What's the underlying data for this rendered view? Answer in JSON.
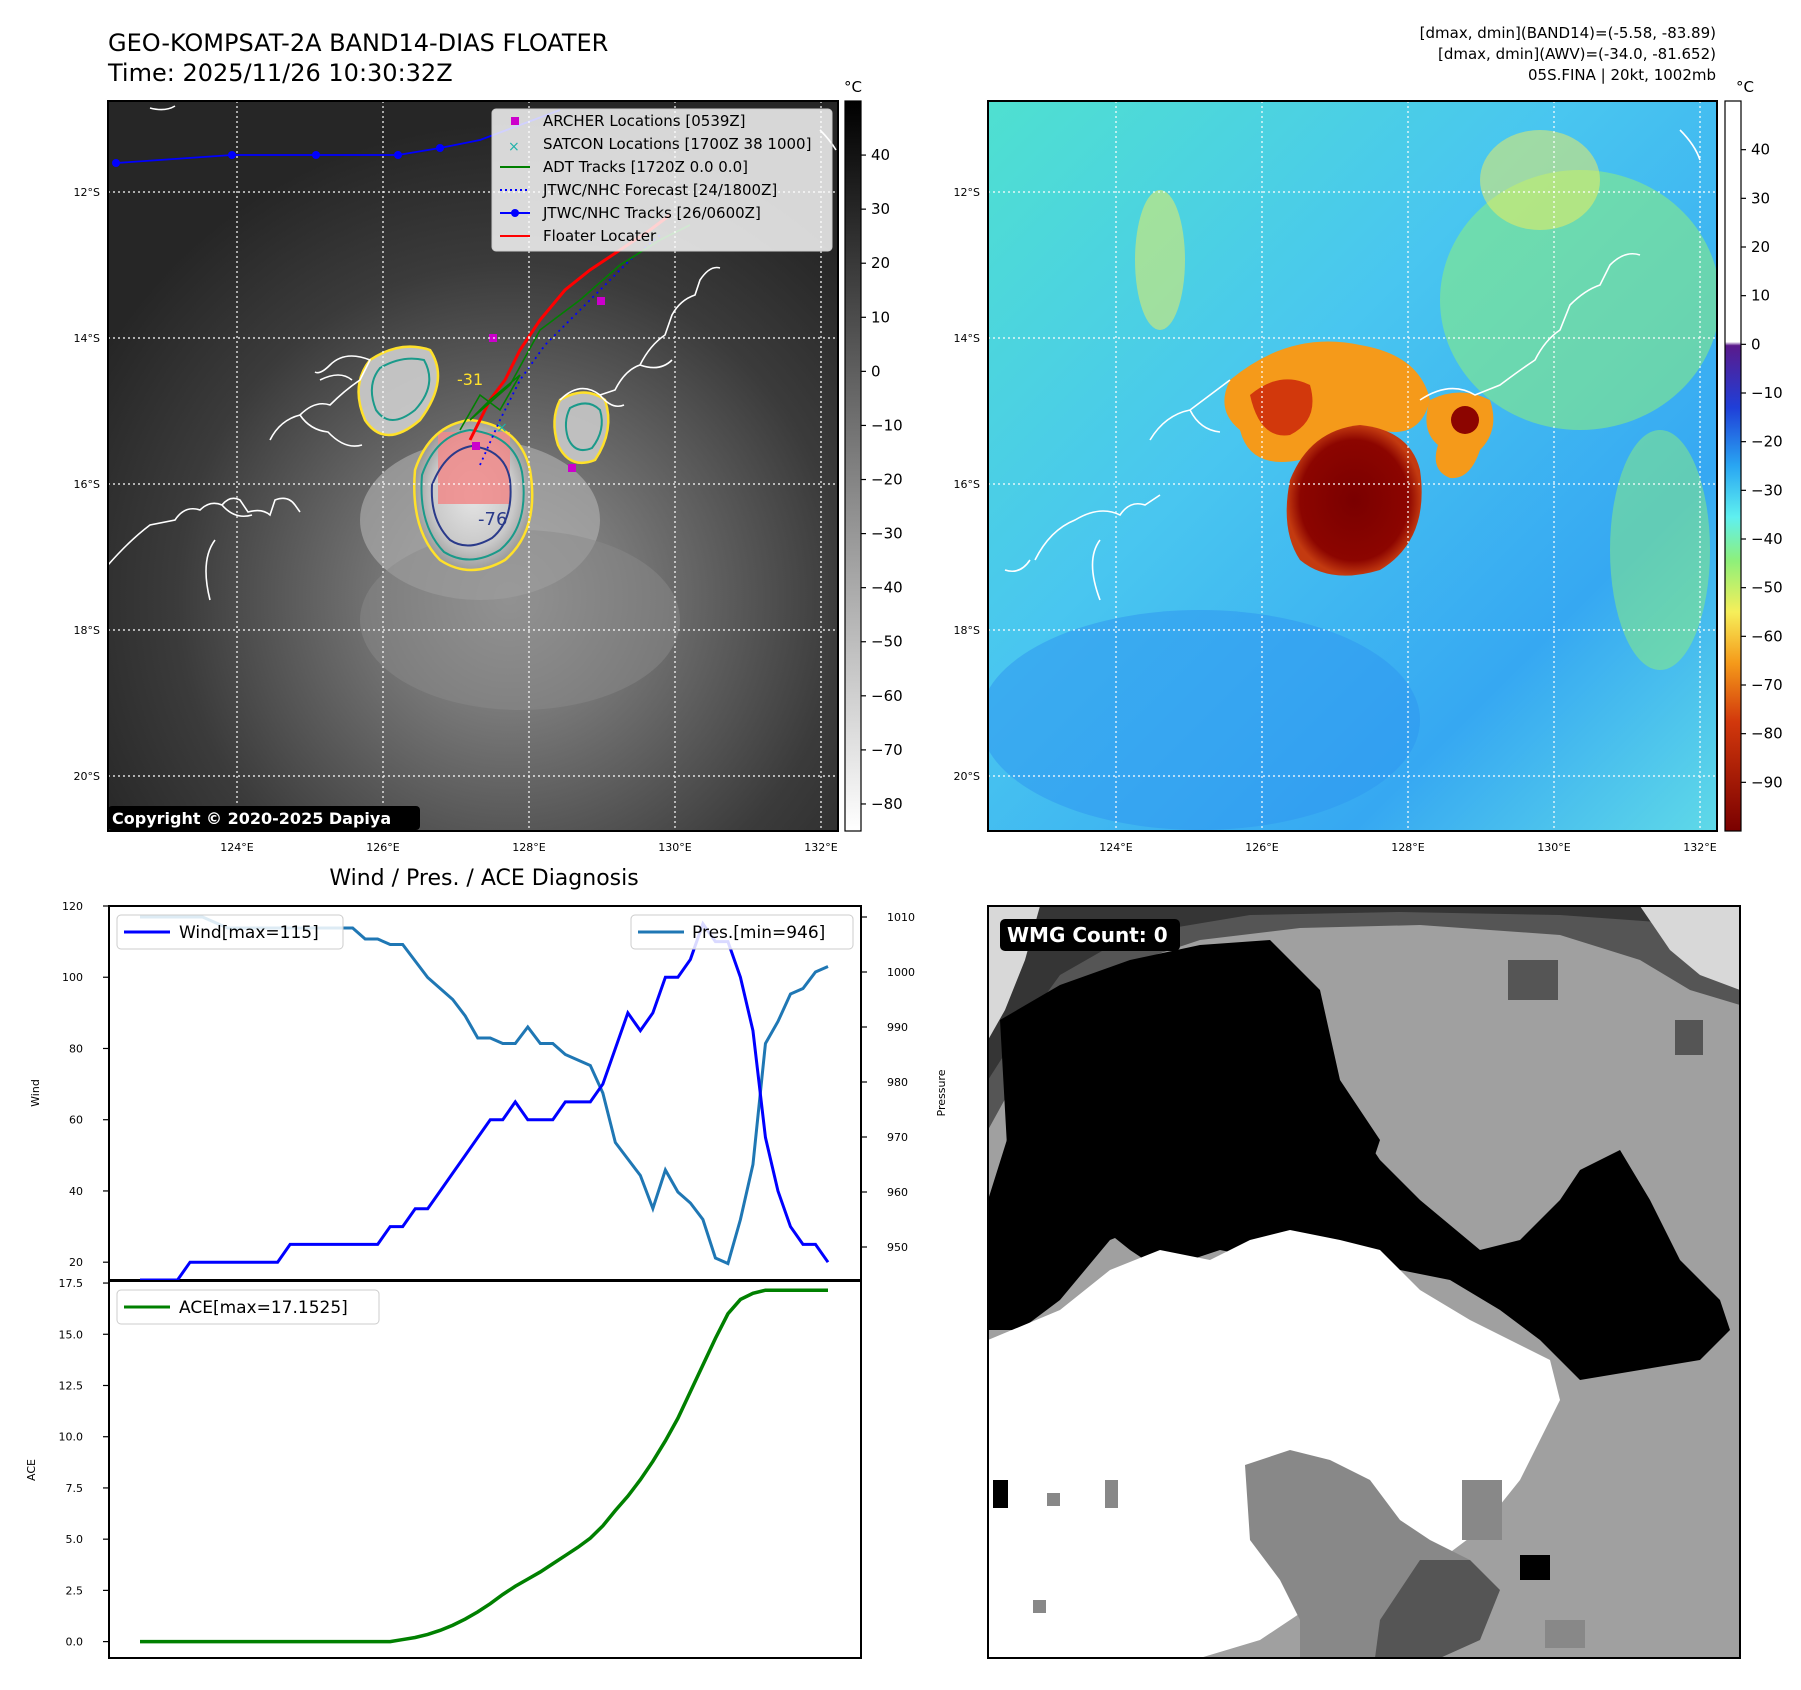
{
  "header": {
    "title": "GEO-KOMPSAT-2A BAND14-DIAS FLOATER",
    "time": "Time: 2025/11/26 10:30:32Z",
    "stats_band14": "[dmax, dmin](BAND14)=(-5.58, -83.89)",
    "stats_awv": "[dmax, dmin](AWV)=(-34.0, -81.652)",
    "storm": "05S.FINA | 20kt, 1002mb",
    "copyright": "Copyright © 2020-2025 Dapiya"
  },
  "map": {
    "lat_labels": [
      "12°S",
      "14°S",
      "16°S",
      "18°S",
      "20°S"
    ],
    "lon_labels": [
      "124°E",
      "126°E",
      "128°E",
      "130°E",
      "132°E"
    ],
    "contour_labels": [
      "-31",
      "-76"
    ],
    "colors": {
      "land": "#ffffff",
      "grid": "#ffffff",
      "archer": "#cc00cc",
      "satcon": "#20b2aa",
      "adt": "#008000",
      "jtwc": "#0000ff",
      "floater": "#ff0000"
    },
    "legend": [
      {
        "label": "ARCHER Locations [0539Z]",
        "color": "#cc00cc",
        "style": "square"
      },
      {
        "label": "SATCON Locations [1700Z 38 1000]",
        "color": "#20b2aa",
        "style": "x"
      },
      {
        "label": "ADT Tracks [1720Z 0.0 0.0]",
        "color": "#008000",
        "style": "line"
      },
      {
        "label": "JTWC/NHC Forecast [24/1800Z]",
        "color": "#0000ff",
        "style": "dotted"
      },
      {
        "label": "JTWC/NHC Tracks [26/0600Z]",
        "color": "#0000ff",
        "style": "dotline"
      },
      {
        "label": "Floater Locater",
        "color": "#ff0000",
        "style": "line"
      }
    ]
  },
  "colorbar_ir": {
    "unit": "°C",
    "ticks": [
      "40",
      "30",
      "20",
      "10",
      "0",
      "−10",
      "−20",
      "−30",
      "−40",
      "−50",
      "−60",
      "−70",
      "−80"
    ],
    "range": [
      -85,
      50
    ]
  },
  "colorbar_awv": {
    "unit": "°C",
    "ticks": [
      "40",
      "30",
      "20",
      "10",
      "0",
      "−10",
      "−20",
      "−30",
      "−40",
      "−50",
      "−60",
      "−70",
      "−80",
      "−90"
    ],
    "range": [
      -100,
      50
    ]
  },
  "wmg": {
    "label": "WMG Count: 0"
  },
  "chart_data": [
    {
      "type": "line",
      "title": "Wind / Pres. / ACE Diagnosis",
      "xlabel": "",
      "ylabel": "Wind",
      "y2label": "Pressure",
      "ylim": [
        15,
        120
      ],
      "y2lim": [
        944,
        1012
      ],
      "yticks": [
        "20",
        "40",
        "60",
        "80",
        "100",
        "120"
      ],
      "y2ticks": [
        "950",
        "960",
        "970",
        "980",
        "990",
        "1000",
        "1010"
      ],
      "series": [
        {
          "name": "Wind[max=115]",
          "axis": "left",
          "color": "#0000ff",
          "values": [
            15,
            15,
            15,
            15,
            20,
            20,
            20,
            20,
            20,
            20,
            20,
            20,
            25,
            25,
            25,
            25,
            25,
            25,
            25,
            25,
            30,
            30,
            35,
            35,
            40,
            45,
            50,
            55,
            60,
            60,
            65,
            60,
            60,
            60,
            65,
            65,
            65,
            70,
            80,
            90,
            85,
            90,
            100,
            100,
            105,
            115,
            110,
            110,
            100,
            85,
            55,
            40,
            30,
            25,
            25,
            20
          ]
        },
        {
          "name": "Pres.[min=946]",
          "axis": "right",
          "color": "#1f77b4",
          "values": [
            1010,
            1010,
            1010,
            1010,
            1010,
            1010,
            1009,
            1008,
            1008,
            1008,
            1008,
            1008,
            1008,
            1008,
            1008,
            1008,
            1008,
            1008,
            1006,
            1006,
            1005,
            1005,
            1002,
            999,
            997,
            995,
            992,
            988,
            988,
            987,
            987,
            990,
            987,
            987,
            985,
            984,
            983,
            978,
            969,
            966,
            963,
            957,
            964,
            960,
            958,
            955,
            948,
            947,
            955,
            965,
            987,
            991,
            996,
            997,
            1000,
            1001
          ]
        }
      ]
    },
    {
      "type": "line",
      "xlabel": "",
      "ylabel": "ACE",
      "ylim": [
        -0.8,
        17.6
      ],
      "yticks": [
        "0.0",
        "2.5",
        "5.0",
        "7.5",
        "10.0",
        "12.5",
        "15.0",
        "17.5"
      ],
      "series": [
        {
          "name": "ACE[max=17.1525]",
          "color": "#008000",
          "values": [
            0,
            0,
            0,
            0,
            0,
            0,
            0,
            0,
            0,
            0,
            0,
            0,
            0,
            0,
            0,
            0,
            0,
            0,
            0,
            0,
            0,
            0.1,
            0.2,
            0.35,
            0.55,
            0.8,
            1.1,
            1.45,
            1.85,
            2.3,
            2.7,
            3.05,
            3.4,
            3.8,
            4.2,
            4.6,
            5.05,
            5.65,
            6.4,
            7.1,
            7.9,
            8.8,
            9.8,
            10.9,
            12.2,
            13.5,
            14.8,
            16.0,
            16.7,
            17.0,
            17.15,
            17.15,
            17.15,
            17.15,
            17.15,
            17.15
          ]
        }
      ]
    }
  ]
}
